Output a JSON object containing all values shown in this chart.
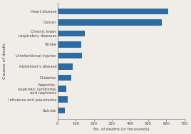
{
  "categories": [
    "Suicide",
    "Influenza and pneumonia",
    "Nephritis,\nnephrotic syndrome,\nand nephrosis",
    "Diabetes",
    "Alzheimer's disease",
    "Unintentional injuries",
    "Stroke",
    "Chronic lower\nrespiratory diseases",
    "Cancer",
    "Heart disease"
  ],
  "values": [
    41,
    55,
    48,
    75,
    84,
    136,
    129,
    149,
    576,
    611
  ],
  "bar_color": "#2d6ca2",
  "xlabel": "No. of deaths (in thousands)",
  "ylabel": "Causes of death",
  "xlim": [
    0,
    700
  ],
  "xticks": [
    0,
    100,
    200,
    300,
    400,
    500,
    600,
    700
  ],
  "bar_height": 0.55,
  "tick_fontsize": 3.8,
  "ylabel_fontsize": 4.5,
  "xlabel_fontsize": 4.0,
  "bg_color": "#f0ede8",
  "plot_bg": "#f0ede8",
  "spine_color": "#888888",
  "text_color": "#444444"
}
